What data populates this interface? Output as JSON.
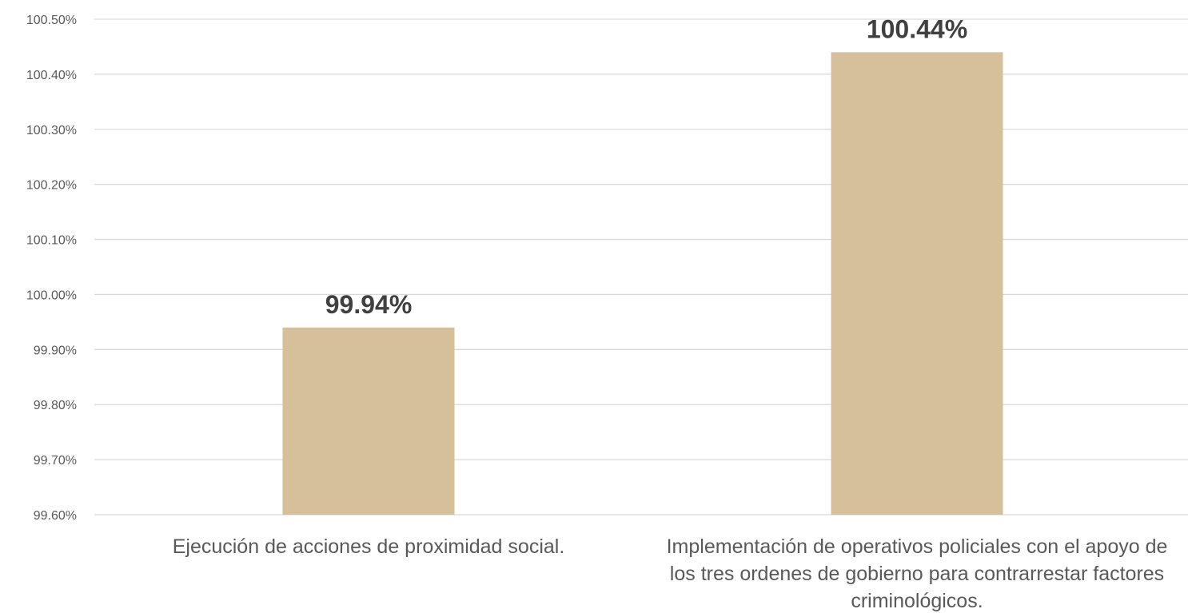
{
  "chart_data": {
    "type": "bar",
    "categories": [
      [
        "Ejecución de acciones de proximidad social."
      ],
      [
        "Implementación de operativos policiales con el apoyo de",
        "los tres ordenes de gobierno para contrarrestar factores",
        "criminológicos."
      ]
    ],
    "values": [
      99.94,
      100.44
    ],
    "data_labels": [
      "99.94%",
      "100.44%"
    ],
    "y_ticks": [
      "99.60%",
      "99.70%",
      "99.80%",
      "99.90%",
      "100.00%",
      "100.10%",
      "100.20%",
      "100.30%",
      "100.40%",
      "100.50%"
    ],
    "ylim": [
      99.6,
      100.5
    ],
    "ytick_step": 0.1,
    "grid": true,
    "bar_color": "#d5c09a",
    "title": "",
    "xlabel": "",
    "ylabel": ""
  }
}
